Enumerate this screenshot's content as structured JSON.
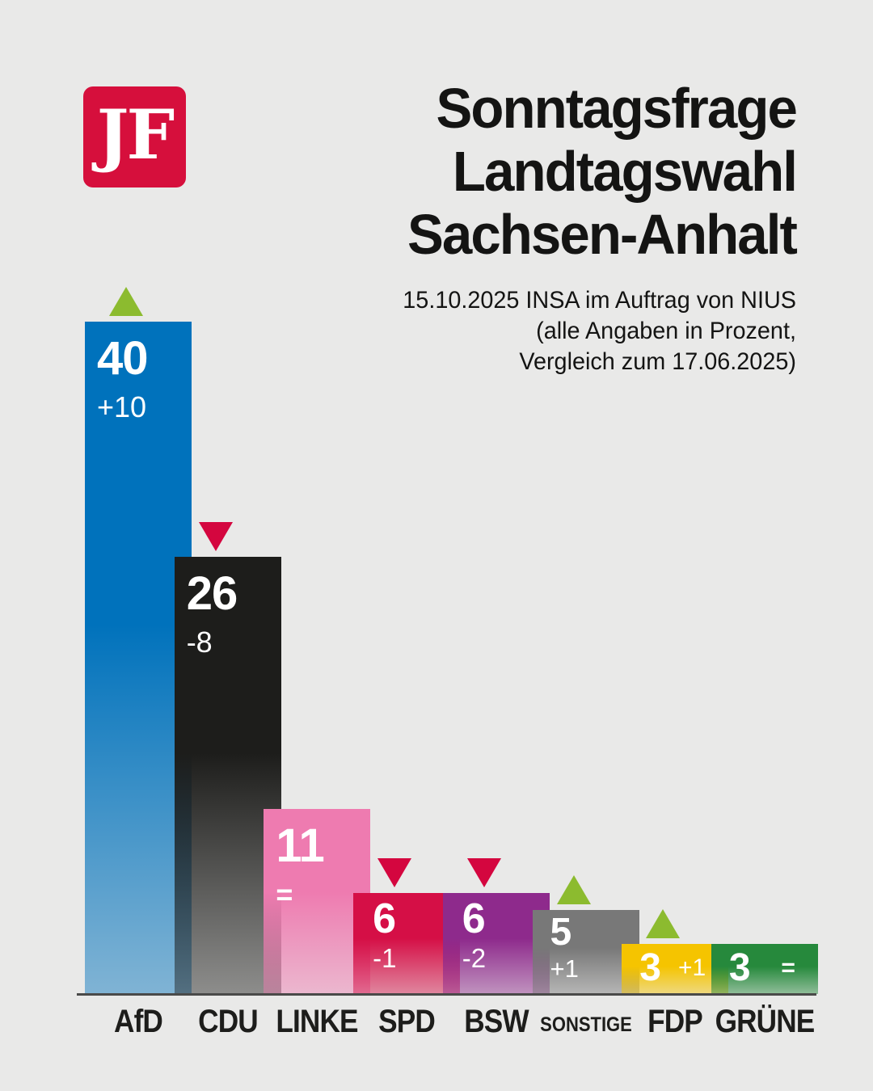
{
  "background": "#e9e9e8",
  "logo": {
    "text": "JF",
    "bg_color": "#d60f3c",
    "text_color": "#ffffff"
  },
  "header": {
    "title_lines": [
      "Sonntagsfrage",
      "Landtagswahl",
      "Sachsen-Anhalt"
    ],
    "subtitle_lines": [
      "15.10.2025 INSA im Auftrag von NIUS",
      "(alle Angaben in Prozent,",
      "Vergleich zum 17.06.2025)"
    ]
  },
  "colors": {
    "up_arrow": "#8cbb2f",
    "down_arrow": "#d4063f",
    "axis": "#4a4a49",
    "title_text": "#141413",
    "value_text": "#ffffff",
    "label_text": "#1d1d1b"
  },
  "chart_data": {
    "type": "bar",
    "title": "Sonntagsfrage Landtagswahl Sachsen-Anhalt",
    "subtitle": "15.10.2025 INSA im Auftrag von NIUS (alle Angaben in Prozent, Vergleich zum 17.06.2025)",
    "unit": "percent",
    "ylim": [
      0,
      40
    ],
    "grid": false,
    "legend_position": "none",
    "categories": [
      "AfD",
      "CDU",
      "LINKE",
      "SPD",
      "BSW",
      "SONSTIGE",
      "FDP",
      "GRÜNE"
    ],
    "values": [
      40,
      26,
      11,
      6,
      6,
      5,
      3,
      3
    ],
    "changes": [
      "+10",
      "-8",
      "=",
      "-1",
      "-2",
      "+1",
      "+1",
      "="
    ],
    "trends": [
      "up",
      "down",
      "none",
      "down",
      "down",
      "up",
      "up",
      "none"
    ],
    "bar_colors": [
      "#0072bc",
      "#1d1d1b",
      "#ee7bb0",
      "#d50f46",
      "#8e2a8c",
      "#787878",
      "#f5c400",
      "#26893c"
    ]
  }
}
